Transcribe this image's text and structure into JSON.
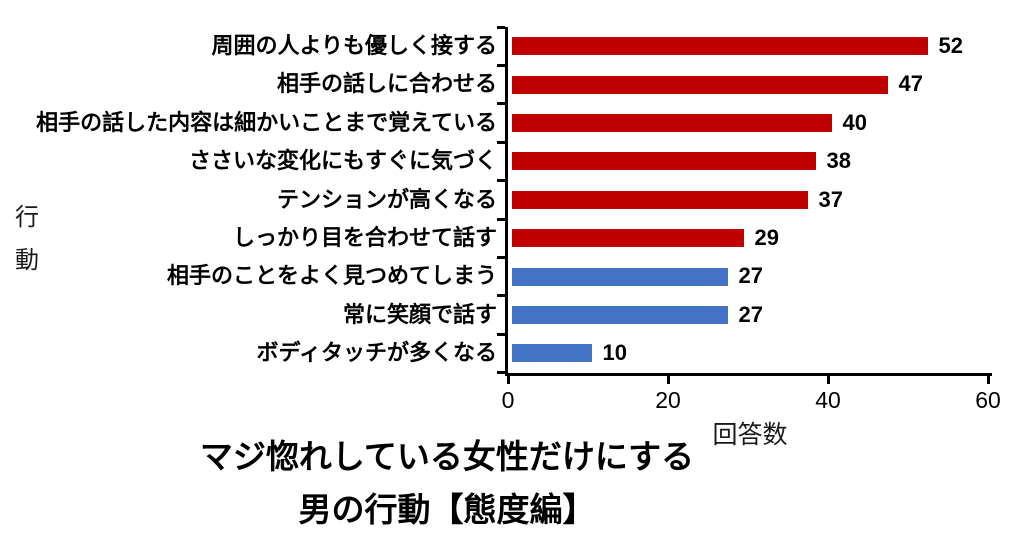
{
  "chart_data": {
    "type": "bar",
    "orientation": "horizontal",
    "categories": [
      "周囲の人よりも優しく接する",
      "相手の話しに合わせる",
      "相手の話した内容は細かいことまで覚えている",
      "ささいな変化にもすぐに気づく",
      "テンションが高くなる",
      "しっかり目を合わせて話す",
      "相手のことをよく見つめてしまう",
      "常に笑顔で話す",
      "ボディタッチが多くなる"
    ],
    "values": [
      52,
      47,
      40,
      38,
      37,
      29,
      27,
      27,
      10
    ],
    "bar_colors": [
      "#c00000",
      "#c00000",
      "#c00000",
      "#c00000",
      "#c00000",
      "#c00000",
      "#4472c4",
      "#4472c4",
      "#4472c4"
    ],
    "value_labels": [
      "52",
      "47",
      "40",
      "38",
      "37",
      "29",
      "27",
      "27",
      "10"
    ],
    "x_ticks": [
      0,
      20,
      40,
      60
    ],
    "x_tick_labels": [
      "0",
      "20",
      "40",
      "60"
    ],
    "xlim": [
      0,
      60
    ],
    "xlabel": "回答数",
    "ylabel": "行動",
    "title_lines": [
      "マジ惚れしている女性だけにする",
      "男の行動【態度編】"
    ],
    "grid": false,
    "legend": false,
    "axis_color": "#000000"
  }
}
